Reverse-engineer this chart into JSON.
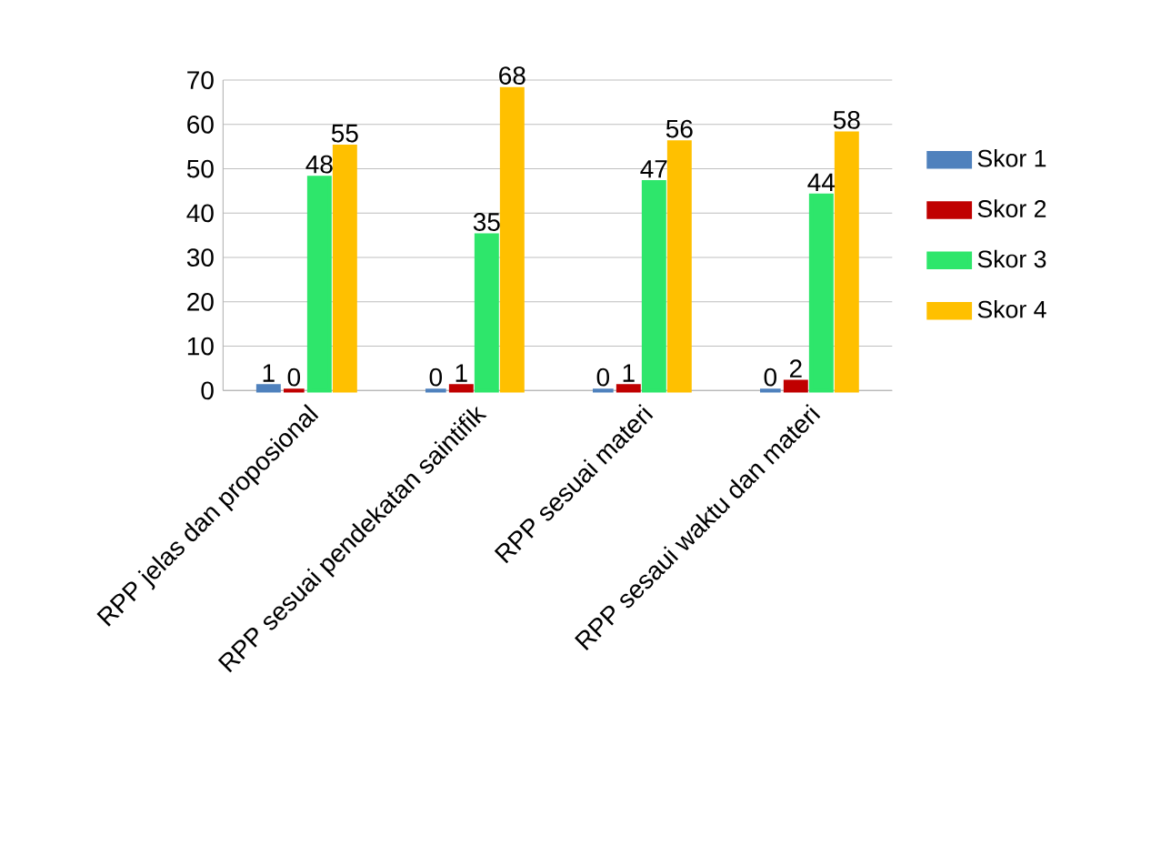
{
  "chart_data": {
    "type": "bar",
    "categories": [
      "RPP jelas dan proposional",
      "RPP sesuai pendekatan saintifik",
      "RPP sesuai materi",
      "RPP sesaui waktu dan materi"
    ],
    "series": [
      {
        "name": "Skor 1",
        "color": "#4f81bd",
        "values": [
          1,
          0,
          0,
          0
        ]
      },
      {
        "name": "Skor 2",
        "color": "#c00000",
        "values": [
          0,
          1,
          1,
          2
        ]
      },
      {
        "name": "Skor 3",
        "color": "#2ee66b",
        "values": [
          48,
          35,
          47,
          44
        ]
      },
      {
        "name": "Skor 4",
        "color": "#ffc000",
        "values": [
          55,
          68,
          56,
          58
        ]
      }
    ],
    "ylim": [
      0,
      70
    ],
    "yticks": [
      0,
      10,
      20,
      30,
      40,
      50,
      60,
      70
    ],
    "grid": "y",
    "legend": "right",
    "data_labels": true
  }
}
